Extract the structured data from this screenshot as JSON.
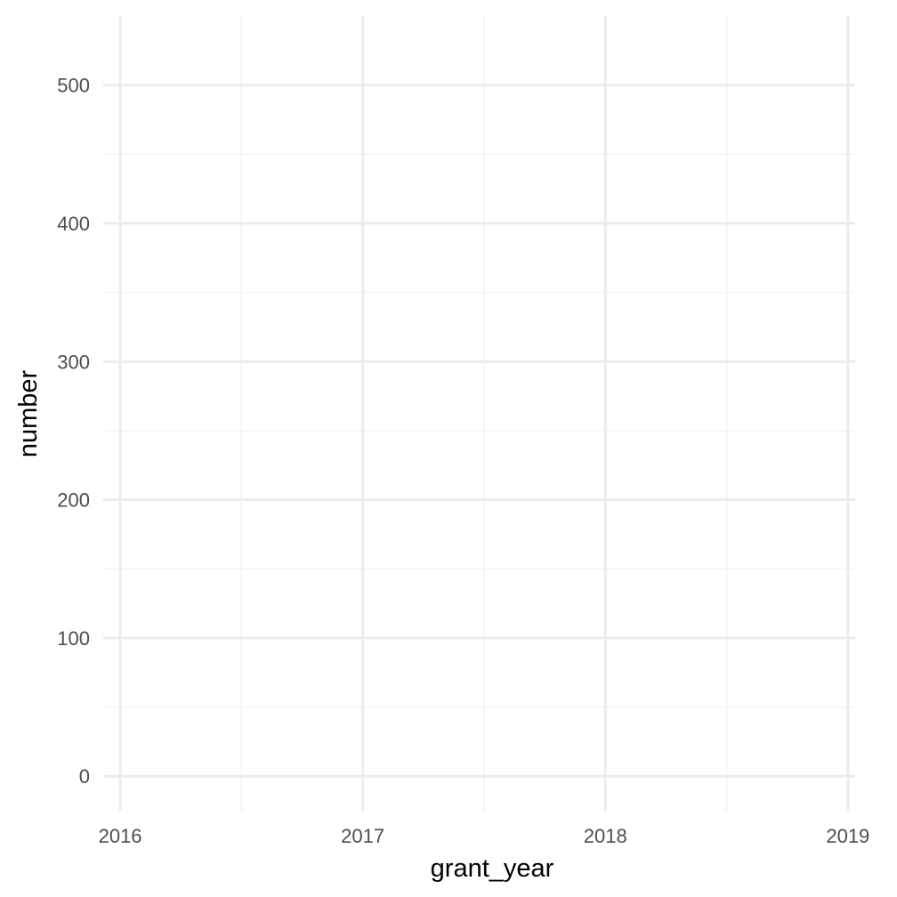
{
  "chart_data": {
    "type": "line",
    "title": "",
    "xlabel": "grant_year",
    "ylabel": "number",
    "x_ticks": [
      2016,
      2017,
      2018,
      2019
    ],
    "y_ticks": [
      0,
      100,
      200,
      300,
      400,
      500
    ],
    "xlim": [
      2015.93,
      2019.03
    ],
    "ylim": [
      -25,
      550
    ],
    "grid": true,
    "legend": "none",
    "series": [],
    "colors": {
      "grid_major": "#ebebeb",
      "grid_minor": "#f2f2f2",
      "tick_text": "#4d4d4d",
      "axis_title": "#000000",
      "background": "#ffffff"
    }
  }
}
